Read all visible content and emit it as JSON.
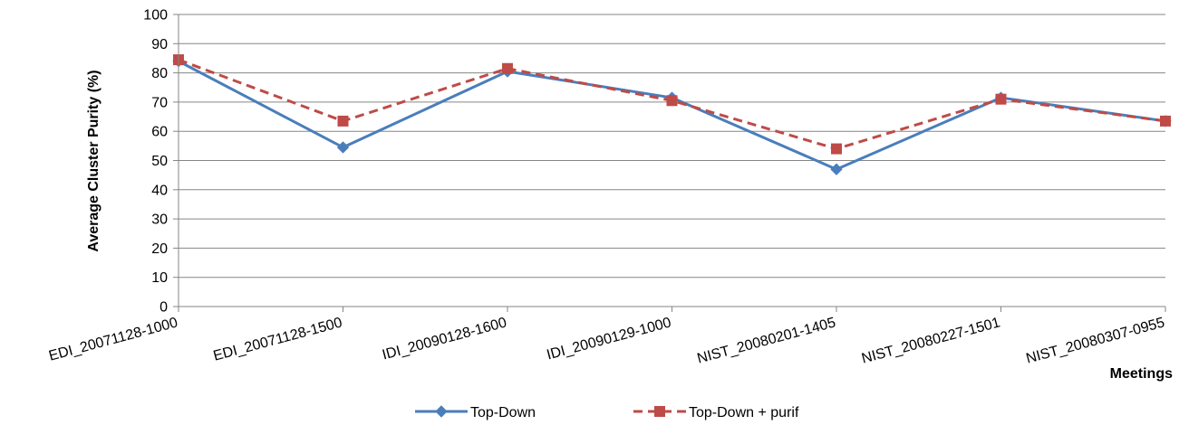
{
  "chart_data": {
    "type": "line",
    "categories": [
      "EDI_20071128-1000",
      "EDI_20071128-1500",
      "IDI_20090128-1600",
      "IDI_20090129-1000",
      "NIST_20080201-1405",
      "NIST_20080227-1501",
      "NIST_20080307-0955"
    ],
    "series": [
      {
        "name": "Top-Down",
        "values": [
          84,
          54.5,
          80.5,
          71.5,
          47,
          71.5,
          63.5
        ],
        "color": "#4a7ebb",
        "dash": "solid",
        "marker": "diamond"
      },
      {
        "name": "Top-Down + purif",
        "values": [
          84.5,
          63.5,
          81.5,
          70.5,
          54,
          71,
          63.5
        ],
        "color": "#be4b48",
        "dash": "dashed",
        "marker": "square"
      }
    ],
    "title": "",
    "xlabel": "Meetings",
    "ylabel": "Average Cluster Purity (%)",
    "ylim": [
      0,
      100
    ],
    "yticks": [
      0,
      10,
      20,
      30,
      40,
      50,
      60,
      70,
      80,
      90,
      100
    ],
    "grid": "horizontal",
    "legend_position": "bottom"
  }
}
